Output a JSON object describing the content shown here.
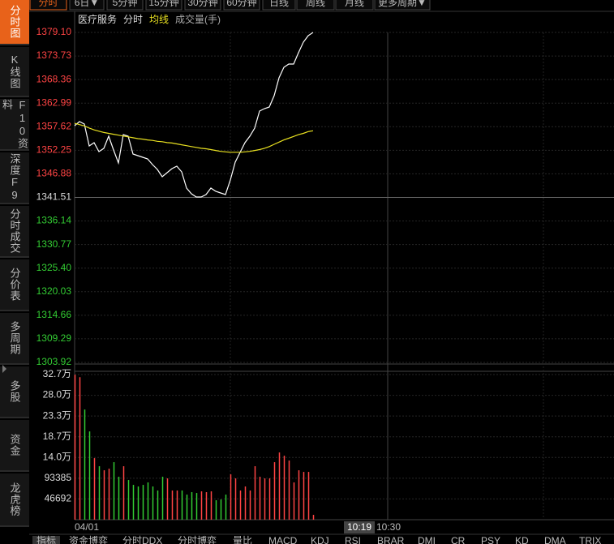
{
  "sidebar": {
    "tabs": [
      "分时图",
      "K线图",
      "F10资料",
      "深度F9",
      "分时成交",
      "分价表",
      "多周期",
      "多股",
      "资金",
      "龙虎榜"
    ],
    "active": 0
  },
  "period_tabs": {
    "tabs": [
      "分时",
      "6日▼",
      "5分钟",
      "15分钟",
      "30分钟",
      "60分钟",
      "日线",
      "周线",
      "月线",
      "更多周期▼"
    ],
    "active": 0
  },
  "indicator_tabs": [
    "指标",
    "资金博弈",
    "分时DDX",
    "分时博弈",
    "量比",
    "MACD",
    "KDJ",
    "RSI",
    "BRAR",
    "DMI",
    "CR",
    "PSY",
    "KD",
    "DMA",
    "TRIX"
  ],
  "chart_data": {
    "type": "line",
    "legend": {
      "name": "医疗服务",
      "items": [
        "分时",
        "均线",
        "成交量(手)"
      ]
    },
    "x_labels": [
      "04/01",
      "10:30"
    ],
    "cursor_label": "10:19",
    "prev_close": 1341.51,
    "ylim": [
      1303.92,
      1379.1
    ],
    "yticks": [
      {
        "value": 1379.1,
        "label": "1379.10"
      },
      1373.73,
      1368.36,
      1362.99,
      1357.62,
      1352.25,
      1346.88,
      1341.51,
      1336.14,
      1330.77,
      {
        "value": 1325.4,
        "label": "1325.40"
      },
      1320.03,
      1314.66,
      1309.29,
      1303.92
    ],
    "series": [
      {
        "name": "分时",
        "color": "#ffffff",
        "values": [
          1357.86,
          1358.78,
          1358.23,
          1353.24,
          1353.98,
          1351.95,
          1352.69,
          1355.46,
          1352.32,
          1349.36,
          1355.83,
          1355.46,
          1351.39,
          1351.03,
          1350.66,
          1350.29,
          1348.99,
          1347.89,
          1346.22,
          1347.15,
          1348.07,
          1348.62,
          1347.33,
          1343.64,
          1342.34,
          1341.6,
          1341.6,
          1342.16,
          1343.64,
          1342.9,
          1342.53,
          1342.16,
          1345.48,
          1349.55,
          1351.76,
          1353.98,
          1355.46,
          1357.31,
          1361.18,
          1361.74,
          1362.11,
          1364.69,
          1368.76,
          1371.16,
          1371.9,
          1371.9,
          1374.48,
          1376.88,
          1378.36,
          1379.1
        ]
      },
      {
        "name": "均线",
        "color": "#e8e020",
        "values": [
          1358.4,
          1358.1,
          1357.8,
          1357.3,
          1356.9,
          1356.6,
          1356.3,
          1356.1,
          1355.9,
          1355.7,
          1355.5,
          1355.3,
          1355.1,
          1354.9,
          1354.8,
          1354.6,
          1354.5,
          1354.3,
          1354.2,
          1354.0,
          1353.9,
          1353.7,
          1353.5,
          1353.3,
          1353.1,
          1352.9,
          1352.7,
          1352.6,
          1352.4,
          1352.2,
          1352.0,
          1351.9,
          1351.8,
          1351.8,
          1351.8,
          1351.9,
          1352.0,
          1352.2,
          1352.4,
          1352.7,
          1353.1,
          1353.6,
          1354.1,
          1354.6,
          1355.0,
          1355.4,
          1355.8,
          1356.1,
          1356.5,
          1356.7
        ]
      }
    ],
    "volume": {
      "up_color": "#ff4444",
      "down_color": "#33cc33",
      "ylim": [
        0,
        326844
      ],
      "yticks": [
        {
          "value": 326844,
          "label": "32.7万"
        },
        {
          "value": 280152,
          "label": "28.0万"
        },
        {
          "value": 233460,
          "label": "23.3万"
        },
        {
          "value": 186768,
          "label": "18.7万"
        },
        {
          "value": 140076,
          "label": "14.0万"
        },
        93385,
        46692
      ],
      "values": [
        326500,
        321000,
        248000,
        198800,
        138600,
        120400,
        111300,
        114900,
        129500,
        96700,
        120400,
        89400,
        78400,
        74800,
        78400,
        83900,
        74800,
        65700,
        96700,
        93000,
        65700,
        65700,
        65700,
        56500,
        62000,
        60200,
        63800,
        62000,
        63800,
        43800,
        45600,
        56500,
        102100,
        93000,
        65700,
        74800,
        65700,
        120400,
        96700,
        93000,
        93000,
        129500,
        151400,
        144100,
        133200,
        83900,
        111300,
        107600,
        107600,
        10900
      ]
    }
  }
}
